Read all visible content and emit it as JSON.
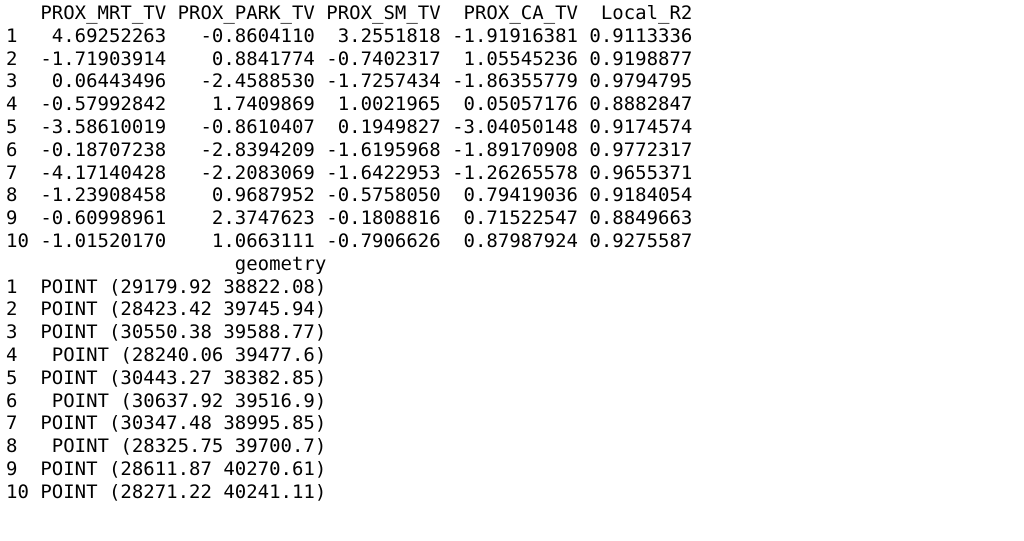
{
  "console": {
    "attributes_block": {
      "header": "   PROX_MRT_TV PROX_PARK_TV PROX_SM_TV  PROX_CA_TV  Local_R2",
      "rows": [
        "1   4.69252263   -0.8604110  3.2551818 -1.91916381 0.9113336",
        "2  -1.71903914    0.8841774 -0.7402317  1.05545236 0.9198877",
        "3   0.06443496   -2.4588530 -1.7257434 -1.86355779 0.9794795",
        "4  -0.57992842    1.7409869  1.0021965  0.05057176 0.8882847",
        "5  -3.58610019   -0.8610407  0.1949827 -3.04050148 0.9174574",
        "6  -0.18707238   -2.8394209 -1.6195968 -1.89170908 0.9772317",
        "7  -4.17140428   -2.2083069 -1.6422953 -1.26265578 0.9655371",
        "8  -1.23908458    0.9687952 -0.5758050  0.79419036 0.9184054",
        "9  -0.60998961    2.3747623 -0.1808816  0.71522547 0.8849663",
        "10 -1.01520170    1.0663111 -0.7906626  0.87987924 0.9275587"
      ]
    },
    "geometry_block": {
      "header": "                    geometry",
      "rows": [
        "1  POINT (29179.92 38822.08)",
        "2  POINT (28423.42 39745.94)",
        "3  POINT (30550.38 39588.77)",
        "4   POINT (28240.06 39477.6)",
        "5  POINT (30443.27 38382.85)",
        "6   POINT (30637.92 39516.9)",
        "7  POINT (30347.48 38995.85)",
        "8   POINT (28325.75 39700.7)",
        "9  POINT (28611.87 40270.61)",
        "10 POINT (28271.22 40241.11)"
      ]
    }
  }
}
